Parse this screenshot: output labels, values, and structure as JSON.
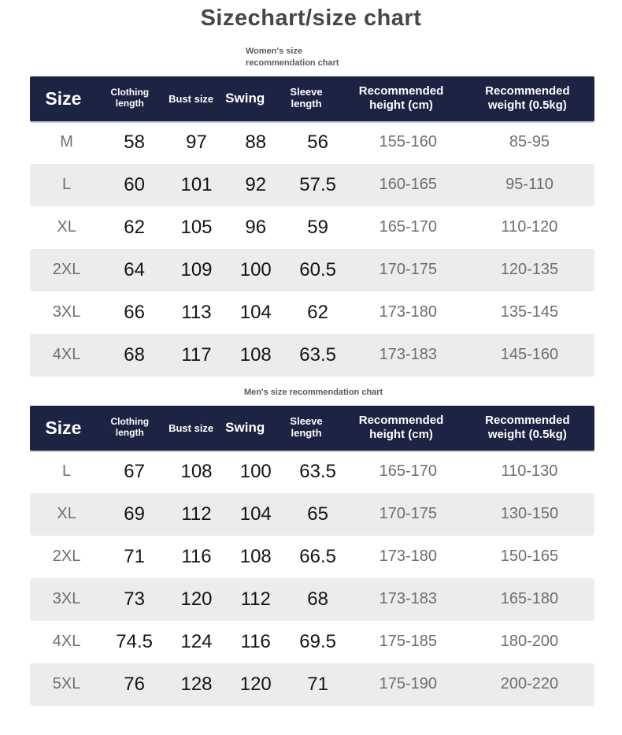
{
  "title": "Sizechart/size chart",
  "colors": {
    "page_bg": "#ffffff",
    "header_bg": "#1d2342",
    "header_text": "#ffffff",
    "stripe_bg": "#ececec",
    "strong_text": "#141414",
    "muted_text": "#6e6e6e",
    "title_text": "#474747",
    "label_text": "#5a5a5a"
  },
  "women": {
    "label": "Women's size recommendation chart",
    "headers": [
      "Size",
      "Clothing length",
      "Bust size",
      "Swing",
      "Sleeve length",
      "Recommended height (cm)",
      "Recommended weight (0.5kg)"
    ],
    "rows": [
      [
        "M",
        "58",
        "97",
        "88",
        "56",
        "155-160",
        "85-95"
      ],
      [
        "L",
        "60",
        "101",
        "92",
        "57.5",
        "160-165",
        "95-110"
      ],
      [
        "XL",
        "62",
        "105",
        "96",
        "59",
        "165-170",
        "110-120"
      ],
      [
        "2XL",
        "64",
        "109",
        "100",
        "60.5",
        "170-175",
        "120-135"
      ],
      [
        "3XL",
        "66",
        "113",
        "104",
        "62",
        "173-180",
        "135-145"
      ],
      [
        "4XL",
        "68",
        "117",
        "108",
        "63.5",
        "173-183",
        "145-160"
      ]
    ]
  },
  "men": {
    "label": "Men's size recommendation chart",
    "headers": [
      "Size",
      "Clothing length",
      "Bust size",
      "Swing",
      "Sleeve length",
      "Recommended height (cm)",
      "Recommended weight (0.5kg)"
    ],
    "rows": [
      [
        "L",
        "67",
        "108",
        "100",
        "63.5",
        "165-170",
        "110-130"
      ],
      [
        "XL",
        "69",
        "112",
        "104",
        "65",
        "170-175",
        "130-150"
      ],
      [
        "2XL",
        "71",
        "116",
        "108",
        "66.5",
        "173-180",
        "150-165"
      ],
      [
        "3XL",
        "73",
        "120",
        "112",
        "68",
        "173-183",
        "165-180"
      ],
      [
        "4XL",
        "74.5",
        "124",
        "116",
        "69.5",
        "175-185",
        "180-200"
      ],
      [
        "5XL",
        "76",
        "128",
        "120",
        "71",
        "175-190",
        "200-220"
      ]
    ]
  }
}
